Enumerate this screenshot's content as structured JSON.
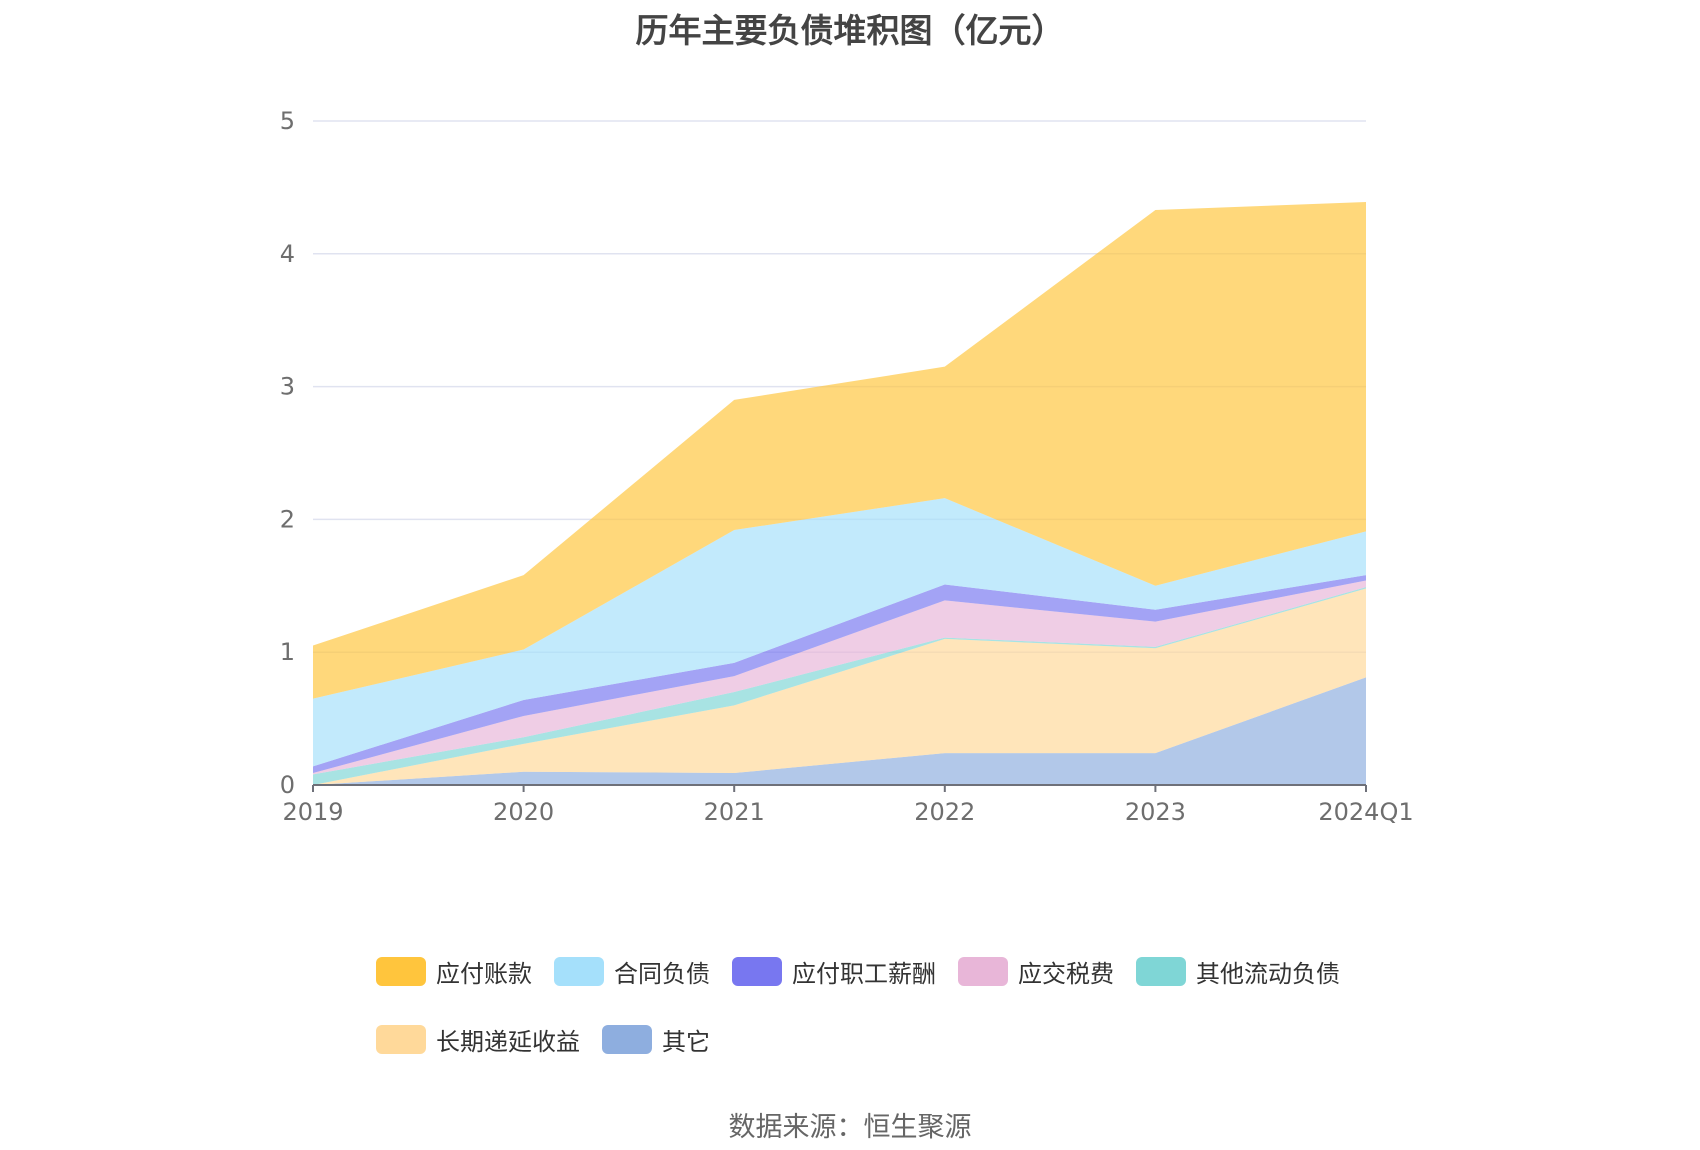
{
  "chart_data": {
    "type": "area",
    "stacked": true,
    "title": "历年主要负债堆积图（亿元）",
    "categories": [
      "2019",
      "2020",
      "2021",
      "2022",
      "2023",
      "2024Q1"
    ],
    "ylim": [
      0,
      5
    ],
    "yticks": [
      "0",
      "1",
      "2",
      "3",
      "4",
      "5"
    ],
    "grid": true,
    "legend_position": "bottom",
    "series": [
      {
        "name": "其它",
        "color": "#8eaedf",
        "values": [
          0.0,
          0.1,
          0.09,
          0.24,
          0.24,
          0.81
        ]
      },
      {
        "name": "长期递延收益",
        "color": "#ffd99a",
        "values": [
          0.0,
          0.21,
          0.51,
          0.86,
          0.79,
          0.67
        ]
      },
      {
        "name": "其他流动负债",
        "color": "#7fd6d6",
        "values": [
          0.08,
          0.05,
          0.1,
          0.01,
          0.01,
          0.01
        ]
      },
      {
        "name": "应交税费",
        "color": "#e8b6d8",
        "values": [
          0.01,
          0.16,
          0.12,
          0.28,
          0.19,
          0.05
        ]
      },
      {
        "name": "应付职工薪酬",
        "color": "#7877f0",
        "values": [
          0.05,
          0.12,
          0.1,
          0.12,
          0.09,
          0.04
        ]
      },
      {
        "name": "合同负债",
        "color": "#a5e0fb",
        "values": [
          0.51,
          0.38,
          1.0,
          0.65,
          0.18,
          0.33
        ]
      },
      {
        "name": "应付账款",
        "color": "#ffc53d",
        "values": [
          0.4,
          0.56,
          0.98,
          0.99,
          2.83,
          2.48
        ]
      }
    ],
    "legend_order": [
      "应付账款",
      "合同负债",
      "应付职工薪酬",
      "应交税费",
      "其他流动负债",
      "长期递延收益",
      "其它"
    ]
  },
  "source": "数据来源：恒生聚源"
}
